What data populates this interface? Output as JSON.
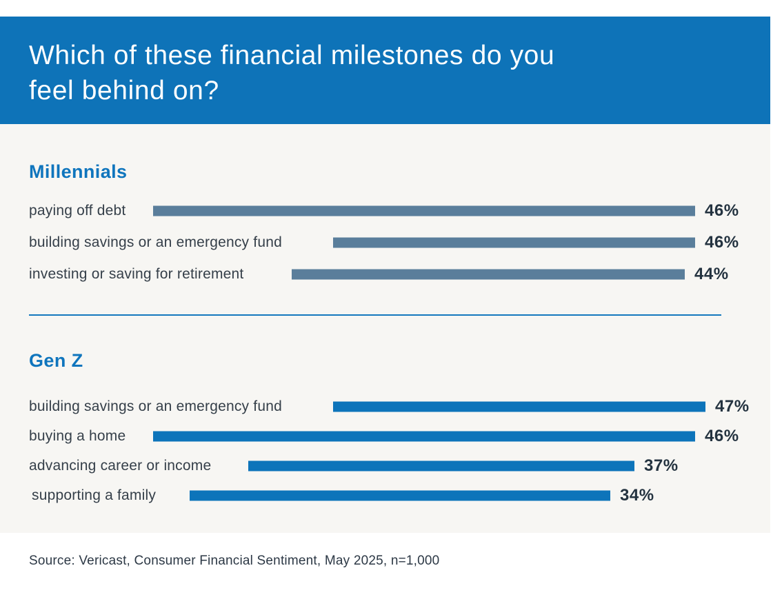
{
  "header": {
    "title_lines": [
      "Which of these financial milestones do you",
      "feel behind on?"
    ]
  },
  "chart_data": {
    "type": "bar",
    "orientation": "horizontal",
    "title": "Which of these financial milestones do you feel behind on?",
    "value_unit": "%",
    "axis": {
      "visible": false,
      "value_range": [
        0,
        50
      ],
      "grid": false,
      "legend": "none"
    },
    "groups": [
      {
        "name": "Millennials",
        "items": [
          {
            "label": "paying off debt",
            "value": 46,
            "display": "46%"
          },
          {
            "label": "building savings or an emergency fund",
            "value": 46,
            "display": "46%"
          },
          {
            "label": "investing or saving for retirement",
            "value": 44,
            "display": "44%"
          }
        ]
      },
      {
        "name": "Gen Z",
        "items": [
          {
            "label": "building savings or an emergency fund",
            "value": 47,
            "display": "47%"
          },
          {
            "label": "buying a home",
            "value": 46,
            "display": "46%"
          },
          {
            "label": "advancing career or income",
            "value": 37,
            "display": "37%"
          },
          {
            "label": "supporting a family",
            "value": 34,
            "display": "34%"
          }
        ]
      }
    ]
  },
  "source": "Source: Vericast, Consumer Financial Sentiment, May 2025, n=1,000",
  "colors": {
    "header_bg": "#0e73b8",
    "title_text": "#ffffff",
    "body_bg": "#f7f6f3",
    "section_title": "#0f75bd",
    "millennials_bar": "#5a7e9b",
    "genz_bar": "#0d74ba",
    "label_text": "#353f49",
    "value_text": "#243340",
    "divider": "#1377bd",
    "source_text": "#2c3845"
  }
}
